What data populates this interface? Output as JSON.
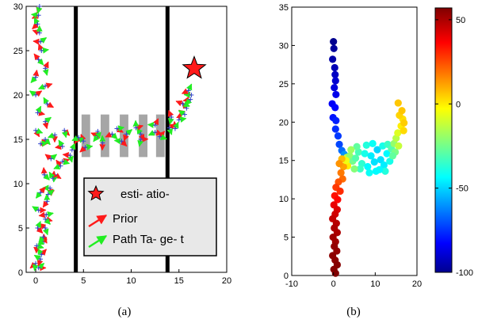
{
  "chart_data": [
    {
      "type": "scatter",
      "caption": "(a)",
      "xlim": [
        -1,
        20
      ],
      "ylim": [
        0,
        30
      ],
      "x_ticks": [
        0,
        5,
        10,
        15,
        20
      ],
      "y_ticks": [
        0,
        5,
        10,
        15,
        20,
        25,
        30
      ],
      "walls": [
        {
          "x": 4.2,
          "y": [
            0,
            31
          ]
        },
        {
          "x": 13.8,
          "y": [
            0,
            31
          ]
        }
      ],
      "shelves": [
        {
          "x": [
            4.8,
            5.7
          ],
          "y": [
            13.0,
            17.8
          ]
        },
        {
          "x": [
            6.8,
            7.7
          ],
          "y": [
            13.0,
            17.8
          ]
        },
        {
          "x": [
            8.8,
            9.7
          ],
          "y": [
            13.0,
            17.8
          ]
        },
        {
          "x": [
            10.8,
            11.7
          ],
          "y": [
            13.0,
            17.8
          ]
        },
        {
          "x": [
            12.6,
            13.5
          ],
          "y": [
            13.0,
            17.8
          ]
        }
      ],
      "destination_star": {
        "x": 16.6,
        "y": 23.0
      },
      "path_points": [
        [
          0.3,
          0.5
        ],
        [
          0.6,
          2.0
        ],
        [
          0.9,
          3.5
        ],
        [
          1.0,
          5.0
        ],
        [
          1.1,
          6.5
        ],
        [
          1.2,
          8.0
        ],
        [
          1.5,
          9.5
        ],
        [
          2.0,
          11.0
        ],
        [
          2.8,
          12.5
        ],
        [
          3.8,
          13.8
        ],
        [
          5.0,
          14.8
        ],
        [
          6.5,
          15.4
        ],
        [
          8.0,
          15.6
        ],
        [
          9.5,
          15.6
        ],
        [
          11.0,
          15.6
        ],
        [
          12.5,
          15.8
        ],
        [
          14.0,
          16.3
        ],
        [
          15.0,
          17.2
        ],
        [
          15.8,
          18.5
        ],
        [
          16.3,
          20.0
        ],
        [
          0.0,
          1.0
        ],
        [
          0.1,
          3.0
        ],
        [
          0.2,
          5.0
        ],
        [
          0.3,
          7.0
        ],
        [
          0.5,
          9.0
        ],
        [
          0.9,
          11.0
        ],
        [
          1.6,
          12.8
        ],
        [
          2.8,
          14.2
        ],
        [
          4.5,
          15.2
        ],
        [
          6.5,
          15.9
        ],
        [
          8.5,
          16.2
        ],
        [
          10.5,
          16.3
        ],
        [
          12.5,
          16.6
        ],
        [
          14.2,
          17.5
        ],
        [
          15.4,
          19.0
        ],
        [
          16.0,
          20.5
        ],
        [
          0.5,
          1.5
        ],
        [
          0.8,
          4.0
        ],
        [
          1.0,
          6.0
        ],
        [
          1.3,
          8.8
        ],
        [
          1.8,
          10.6
        ],
        [
          2.6,
          12.0
        ],
        [
          3.6,
          13.2
        ],
        [
          5.2,
          14.1
        ],
        [
          7.0,
          14.6
        ],
        [
          9.0,
          14.8
        ],
        [
          11.0,
          15.0
        ],
        [
          13.0,
          15.3
        ],
        [
          14.6,
          16.2
        ],
        [
          15.6,
          17.8
        ],
        [
          16.2,
          19.5
        ],
        [
          1.0,
          15.0
        ],
        [
          1.0,
          17.0
        ],
        [
          1.2,
          19.0
        ],
        [
          1.0,
          21.0
        ],
        [
          1.0,
          23.0
        ],
        [
          0.6,
          25.0
        ],
        [
          0.4,
          27.0
        ],
        [
          0.3,
          29.0
        ],
        [
          0.4,
          30.0
        ],
        [
          0.0,
          16.0
        ],
        [
          0.2,
          18.0
        ],
        [
          0.0,
          20.0
        ],
        [
          0.0,
          22.0
        ],
        [
          0.3,
          24.0
        ],
        [
          0.5,
          26.0
        ],
        [
          0.2,
          28.0
        ],
        [
          2.0,
          15.5
        ],
        [
          3.0,
          16.0
        ],
        [
          0.5,
          14.5
        ]
      ],
      "legend": {
        "entries": [
          "esti- atio-",
          "Prior",
          "Path Ta- ge- t"
        ],
        "colors": [
          "#ff1a1a",
          "#ff1a1a",
          "#22ee22"
        ]
      }
    },
    {
      "type": "scatter",
      "caption": "(b)",
      "xlim": [
        -10,
        20
      ],
      "ylim": [
        0,
        35
      ],
      "x_ticks": [
        -10,
        0,
        10,
        20
      ],
      "y_ticks": [
        0,
        5,
        10,
        15,
        20,
        25,
        30,
        35
      ],
      "colorbar": {
        "min": -100,
        "max": 57,
        "ticks": [
          50,
          0,
          -50,
          -100
        ]
      },
      "points": [
        {
          "x": 0.0,
          "y": 30.5,
          "c": -100
        },
        {
          "x": 0.1,
          "y": 29.6,
          "c": -98
        },
        {
          "x": -0.2,
          "y": 28.2,
          "c": -96
        },
        {
          "x": 0.3,
          "y": 27.1,
          "c": -94
        },
        {
          "x": 0.4,
          "y": 26.2,
          "c": -92
        },
        {
          "x": 0.5,
          "y": 25.4,
          "c": -90
        },
        {
          "x": 0.2,
          "y": 24.5,
          "c": -88
        },
        {
          "x": 0.6,
          "y": 23.6,
          "c": -86
        },
        {
          "x": -0.3,
          "y": 22.4,
          "c": -84
        },
        {
          "x": 0.4,
          "y": 21.9,
          "c": -82
        },
        {
          "x": -0.1,
          "y": 20.6,
          "c": -80
        },
        {
          "x": 0.6,
          "y": 20.2,
          "c": -78
        },
        {
          "x": 0.5,
          "y": 19.1,
          "c": -76
        },
        {
          "x": 1.1,
          "y": 18.2,
          "c": -74
        },
        {
          "x": 1.4,
          "y": 17.1,
          "c": -72
        },
        {
          "x": 2.0,
          "y": 16.3,
          "c": -66
        },
        {
          "x": 2.6,
          "y": 15.8,
          "c": -60
        },
        {
          "x": 3.2,
          "y": 15.4,
          "c": -10
        },
        {
          "x": 3.9,
          "y": 15.6,
          "c": -20
        },
        {
          "x": 4.6,
          "y": 14.9,
          "c": -25
        },
        {
          "x": 5.3,
          "y": 15.3,
          "c": -30
        },
        {
          "x": 6.0,
          "y": 16.1,
          "c": -32
        },
        {
          "x": 6.8,
          "y": 14.6,
          "c": -36
        },
        {
          "x": 7.5,
          "y": 15.9,
          "c": -40
        },
        {
          "x": 8.2,
          "y": 14.2,
          "c": -44
        },
        {
          "x": 9.0,
          "y": 15.6,
          "c": -46
        },
        {
          "x": 9.8,
          "y": 14.8,
          "c": -48
        },
        {
          "x": 10.5,
          "y": 16.4,
          "c": -50
        },
        {
          "x": 11.3,
          "y": 15.1,
          "c": -48
        },
        {
          "x": 12.1,
          "y": 14.4,
          "c": -46
        },
        {
          "x": 12.8,
          "y": 15.9,
          "c": -44
        },
        {
          "x": 13.5,
          "y": 14.9,
          "c": -40
        },
        {
          "x": 8.6,
          "y": 13.4,
          "c": -42
        },
        {
          "x": 10.2,
          "y": 13.6,
          "c": -44
        },
        {
          "x": 6.4,
          "y": 13.9,
          "c": -34
        },
        {
          "x": 7.9,
          "y": 17.0,
          "c": -38
        },
        {
          "x": 9.4,
          "y": 17.2,
          "c": -42
        },
        {
          "x": 5.6,
          "y": 16.8,
          "c": -28
        },
        {
          "x": 4.2,
          "y": 16.4,
          "c": -18
        },
        {
          "x": 11.8,
          "y": 16.9,
          "c": -40
        },
        {
          "x": 13.0,
          "y": 17.1,
          "c": -34
        },
        {
          "x": 3.4,
          "y": 14.3,
          "c": 0
        },
        {
          "x": 5.0,
          "y": 13.9,
          "c": -22
        },
        {
          "x": 12.4,
          "y": 13.6,
          "c": -38
        },
        {
          "x": 11.0,
          "y": 13.8,
          "c": -44
        },
        {
          "x": 13.9,
          "y": 16.5,
          "c": -30
        },
        {
          "x": 14.5,
          "y": 17.2,
          "c": -20
        },
        {
          "x": 15.0,
          "y": 17.9,
          "c": -14
        },
        {
          "x": 15.4,
          "y": 18.6,
          "c": -8
        },
        {
          "x": 14.8,
          "y": 16.1,
          "c": -24
        },
        {
          "x": 15.6,
          "y": 16.9,
          "c": -12
        },
        {
          "x": 16.2,
          "y": 19.5,
          "c": 0
        },
        {
          "x": 16.6,
          "y": 20.4,
          "c": 2
        },
        {
          "x": 15.8,
          "y": 20.9,
          "c": 4
        },
        {
          "x": 16.9,
          "y": 19.9,
          "c": 5
        },
        {
          "x": 16.4,
          "y": 21.5,
          "c": 6
        },
        {
          "x": 15.5,
          "y": 22.5,
          "c": 6
        },
        {
          "x": 16.8,
          "y": 18.9,
          "c": 3
        },
        {
          "x": 14.2,
          "y": 15.6,
          "c": -28
        },
        {
          "x": 2.4,
          "y": 14.2,
          "c": 12
        },
        {
          "x": 1.8,
          "y": 13.4,
          "c": 18
        },
        {
          "x": 2.2,
          "y": 12.6,
          "c": 20
        },
        {
          "x": 1.2,
          "y": 12.2,
          "c": 24
        },
        {
          "x": 0.6,
          "y": 11.5,
          "c": 28
        },
        {
          "x": 1.6,
          "y": 11.0,
          "c": 30
        },
        {
          "x": 0.3,
          "y": 10.4,
          "c": 34
        },
        {
          "x": 1.0,
          "y": 9.9,
          "c": 36
        },
        {
          "x": 0.1,
          "y": 9.2,
          "c": 40
        },
        {
          "x": 0.9,
          "y": 8.6,
          "c": 42
        },
        {
          "x": 0.4,
          "y": 8.0,
          "c": 44
        },
        {
          "x": -0.2,
          "y": 7.4,
          "c": 46
        },
        {
          "x": 0.7,
          "y": 6.8,
          "c": 48
        },
        {
          "x": 0.2,
          "y": 6.2,
          "c": 50
        },
        {
          "x": 0.9,
          "y": 5.6,
          "c": 50
        },
        {
          "x": -0.1,
          "y": 5.0,
          "c": 52
        },
        {
          "x": 0.5,
          "y": 4.4,
          "c": 52
        },
        {
          "x": 0.2,
          "y": 3.8,
          "c": 54
        },
        {
          "x": 0.8,
          "y": 3.2,
          "c": 54
        },
        {
          "x": -0.2,
          "y": 2.6,
          "c": 55
        },
        {
          "x": 0.4,
          "y": 2.0,
          "c": 55
        },
        {
          "x": 0.9,
          "y": 1.4,
          "c": 56
        },
        {
          "x": 0.1,
          "y": 0.8,
          "c": 56
        },
        {
          "x": 0.5,
          "y": 0.3,
          "c": 57
        },
        {
          "x": 3.0,
          "y": 15.0,
          "c": -5
        },
        {
          "x": 2.0,
          "y": 15.2,
          "c": 8
        },
        {
          "x": 1.4,
          "y": 14.6,
          "c": 14
        }
      ]
    }
  ]
}
